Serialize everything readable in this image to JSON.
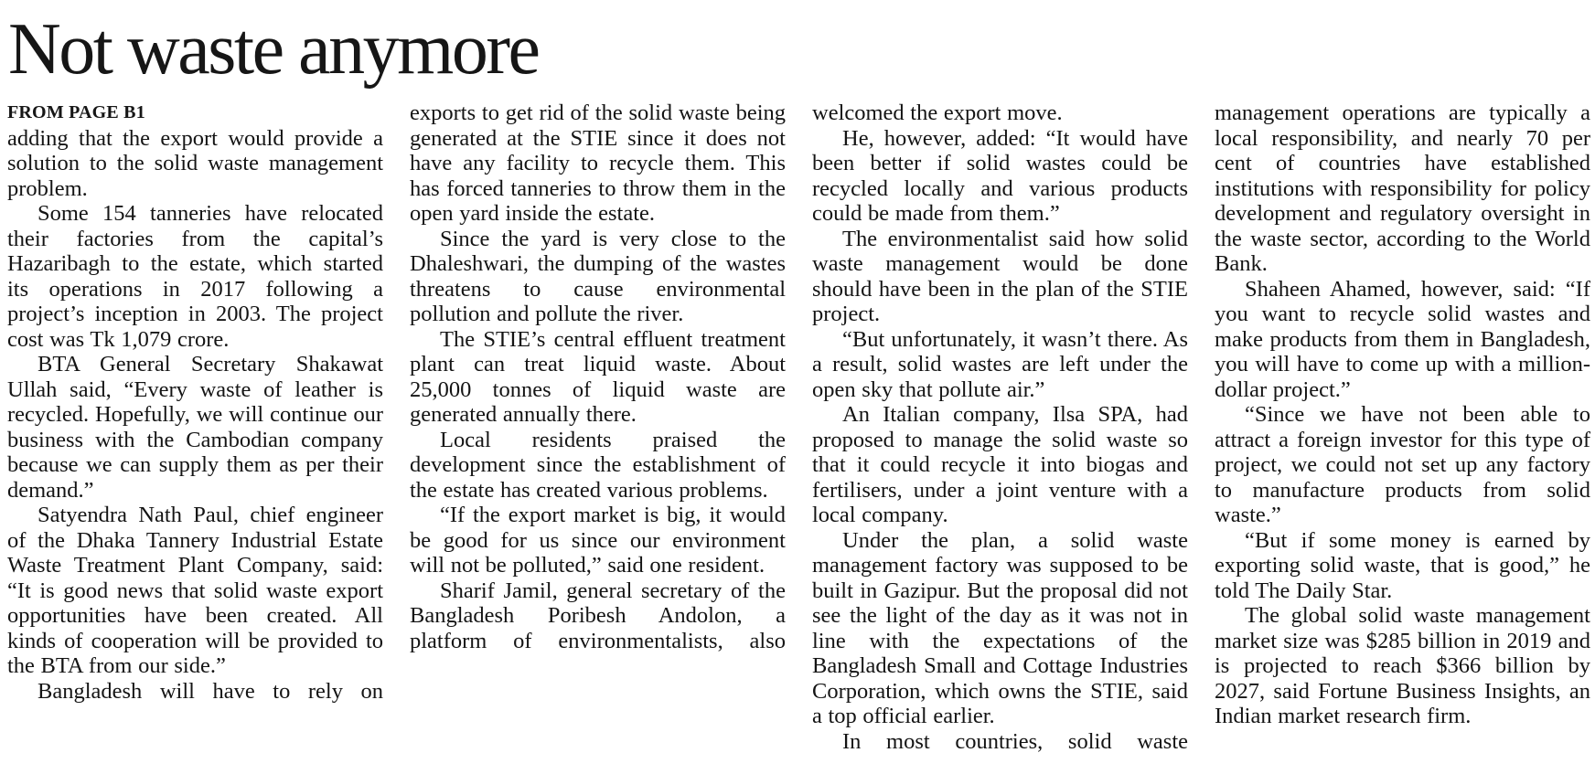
{
  "article": {
    "headline": "Not waste anymore",
    "kicker": "FROM PAGE B1",
    "columns": [
      {
        "blocks": [
          {
            "text": "adding that the export would provide a solution to the solid waste management problem.",
            "indent": false,
            "continues": false
          },
          {
            "text": "Some 154 tanneries have relocated their factories from the capital’s Hazaribagh to the estate, which started its operations in 2017 following a project’s inception in 2003. The project cost was Tk 1,079 crore.",
            "indent": true,
            "continues": false
          },
          {
            "text": "BTA General Secretary Shakawat Ullah said, “Every waste of leather is recycled. Hopefully, we will continue our business with the Cambodian company because we can supply them as per their demand.”",
            "indent": true,
            "continues": false
          },
          {
            "text": "Satyendra Nath Paul, chief engineer of the Dhaka Tannery Industrial Estate Waste Treatment Plant Company, said: “It is good news that solid waste export opportunities have been created. All kinds of cooperation will be provided to the BTA from our side.”",
            "indent": true,
            "continues": false
          },
          {
            "text": "Bangladesh will have to rely on",
            "indent": true,
            "continues": true
          }
        ]
      },
      {
        "blocks": [
          {
            "text": "exports to get rid of the solid waste being generated at the STIE since it does not have any facility to recycle them. This has forced tanneries to throw them in the open yard inside the estate.",
            "indent": false,
            "continues": false
          },
          {
            "text": "Since the yard is very close to the Dhaleshwari, the dumping of the wastes threatens to cause environmental pollution and pollute the river.",
            "indent": true,
            "continues": false
          },
          {
            "text": "The STIE’s central effluent treatment plant can treat liquid waste. About 25,000 tonnes of liquid waste are generated annually there.",
            "indent": true,
            "continues": false
          },
          {
            "text": "Local residents praised the development since the establishment of the estate has created various problems.",
            "indent": true,
            "continues": false
          },
          {
            "text": "“If the export market is big, it would be good for us since our environment will not be polluted,” said one resident.",
            "indent": true,
            "continues": false
          },
          {
            "text": "Sharif Jamil, general secretary of the Bangladesh Poribesh Andolon, a platform of environmentalists, also",
            "indent": true,
            "continues": true
          }
        ]
      },
      {
        "blocks": [
          {
            "text": "welcomed the export move.",
            "indent": false,
            "continues": false
          },
          {
            "text": "He, however, added: “It would have been better if solid wastes could be recycled locally and various products could be made from them.”",
            "indent": true,
            "continues": false
          },
          {
            "text": "The environmentalist said how solid waste management would be done should have been in the plan of the STIE project.",
            "indent": true,
            "continues": false
          },
          {
            "text": "“But unfortunately, it wasn’t there. As a result, solid wastes are left under the open sky that pollute air.”",
            "indent": true,
            "continues": false
          },
          {
            "text": "An Italian company, Ilsa SPA, had proposed to manage the solid waste so that it could recycle it into biogas and fertilisers, under a joint venture with a local company.",
            "indent": true,
            "continues": false
          },
          {
            "text": "Under the plan, a solid waste management factory was supposed to be built in Gazipur. But the proposal did not see the light of the day as it was not in line with the expectations of the Bangladesh Small and Cottage Industries Corporation, which owns the STIE, said a top official earlier.",
            "indent": true,
            "continues": false
          },
          {
            "text": "In most countries, solid waste",
            "indent": true,
            "continues": true
          }
        ]
      },
      {
        "blocks": [
          {
            "text": "management operations are typically a local responsibility, and nearly 70 per cent of countries have established institutions with responsibility for policy development and regulatory oversight in the waste sector, according to the World Bank.",
            "indent": false,
            "continues": false
          },
          {
            "text": "Shaheen Ahamed, however, said: “If you want to recycle solid wastes and make products from them in Bangladesh, you will have to come up with a million-dollar project.”",
            "indent": true,
            "continues": false
          },
          {
            "text": "“Since we have not been able to attract a foreign investor for this type of project, we could not set up any factory to manufacture products from solid waste.”",
            "indent": true,
            "continues": false
          },
          {
            "text": "“But if some money is earned by exporting solid waste, that is good,” he told The Daily Star.",
            "indent": true,
            "continues": false
          },
          {
            "text": "The global solid waste management market size was $285 billion in 2019 and is projected to reach $366 billion by 2027, said Fortune Business Insights, an Indian market research firm.",
            "indent": true,
            "continues": false
          }
        ]
      }
    ]
  }
}
